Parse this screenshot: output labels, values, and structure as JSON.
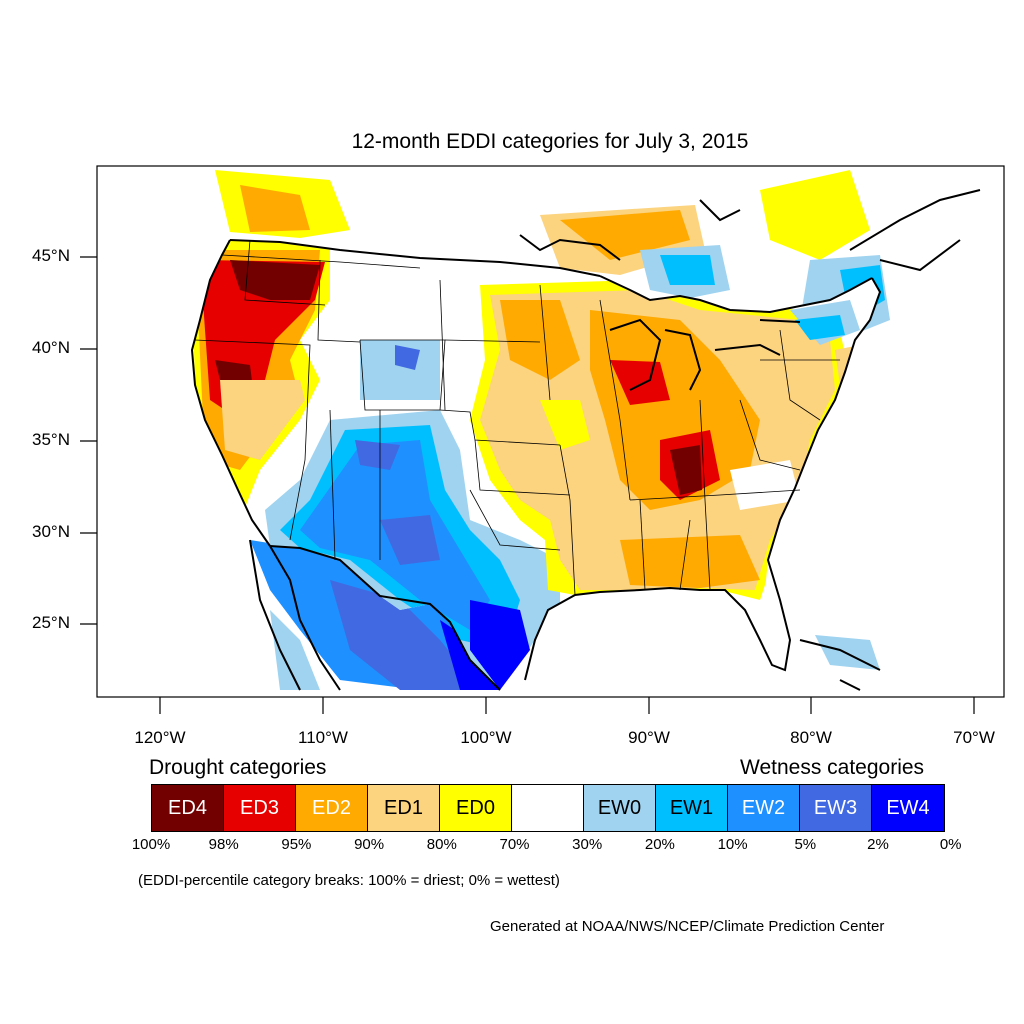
{
  "title": "12-month EDDI categories for July 3, 2015",
  "latitude_labels": [
    "45°N",
    "40°N",
    "35°N",
    "30°N",
    "25°N"
  ],
  "longitude_labels": [
    "120°W",
    "110°W",
    "100°W",
    "90°W",
    "80°W",
    "70°W"
  ],
  "legend": {
    "drought_heading": "Drought categories",
    "wetness_heading": "Wetness categories",
    "categories": [
      {
        "label": "ED4",
        "color": "#730000",
        "text_color": "#ffffff"
      },
      {
        "label": "ED3",
        "color": "#e60000",
        "text_color": "#ffffff"
      },
      {
        "label": "ED2",
        "color": "#ffaa00",
        "text_color": "#ffffff"
      },
      {
        "label": "ED1",
        "color": "#fcd37f",
        "text_color": "#000000"
      },
      {
        "label": "ED0",
        "color": "#ffff00",
        "text_color": "#000000"
      },
      {
        "label": "",
        "color": "#ffffff",
        "text_color": "#000000"
      },
      {
        "label": "EW0",
        "color": "#9fd3f0",
        "text_color": "#000000"
      },
      {
        "label": "EW1",
        "color": "#00bfff",
        "text_color": "#000000"
      },
      {
        "label": "EW2",
        "color": "#1e90ff",
        "text_color": "#ffffff"
      },
      {
        "label": "EW3",
        "color": "#4169e1",
        "text_color": "#ffffff"
      },
      {
        "label": "EW4",
        "color": "#0000ff",
        "text_color": "#ffffff"
      }
    ],
    "percentile_breaks": [
      "100%",
      "98%",
      "95%",
      "90%",
      "80%",
      "70%",
      "30%",
      "20%",
      "10%",
      "5%",
      "2%",
      "0%"
    ]
  },
  "note": "(EDDI-percentile category breaks: 100% = driest; 0% = wettest)",
  "credit": "Generated at NOAA/NWS/NCEP/Climate Prediction Center"
}
